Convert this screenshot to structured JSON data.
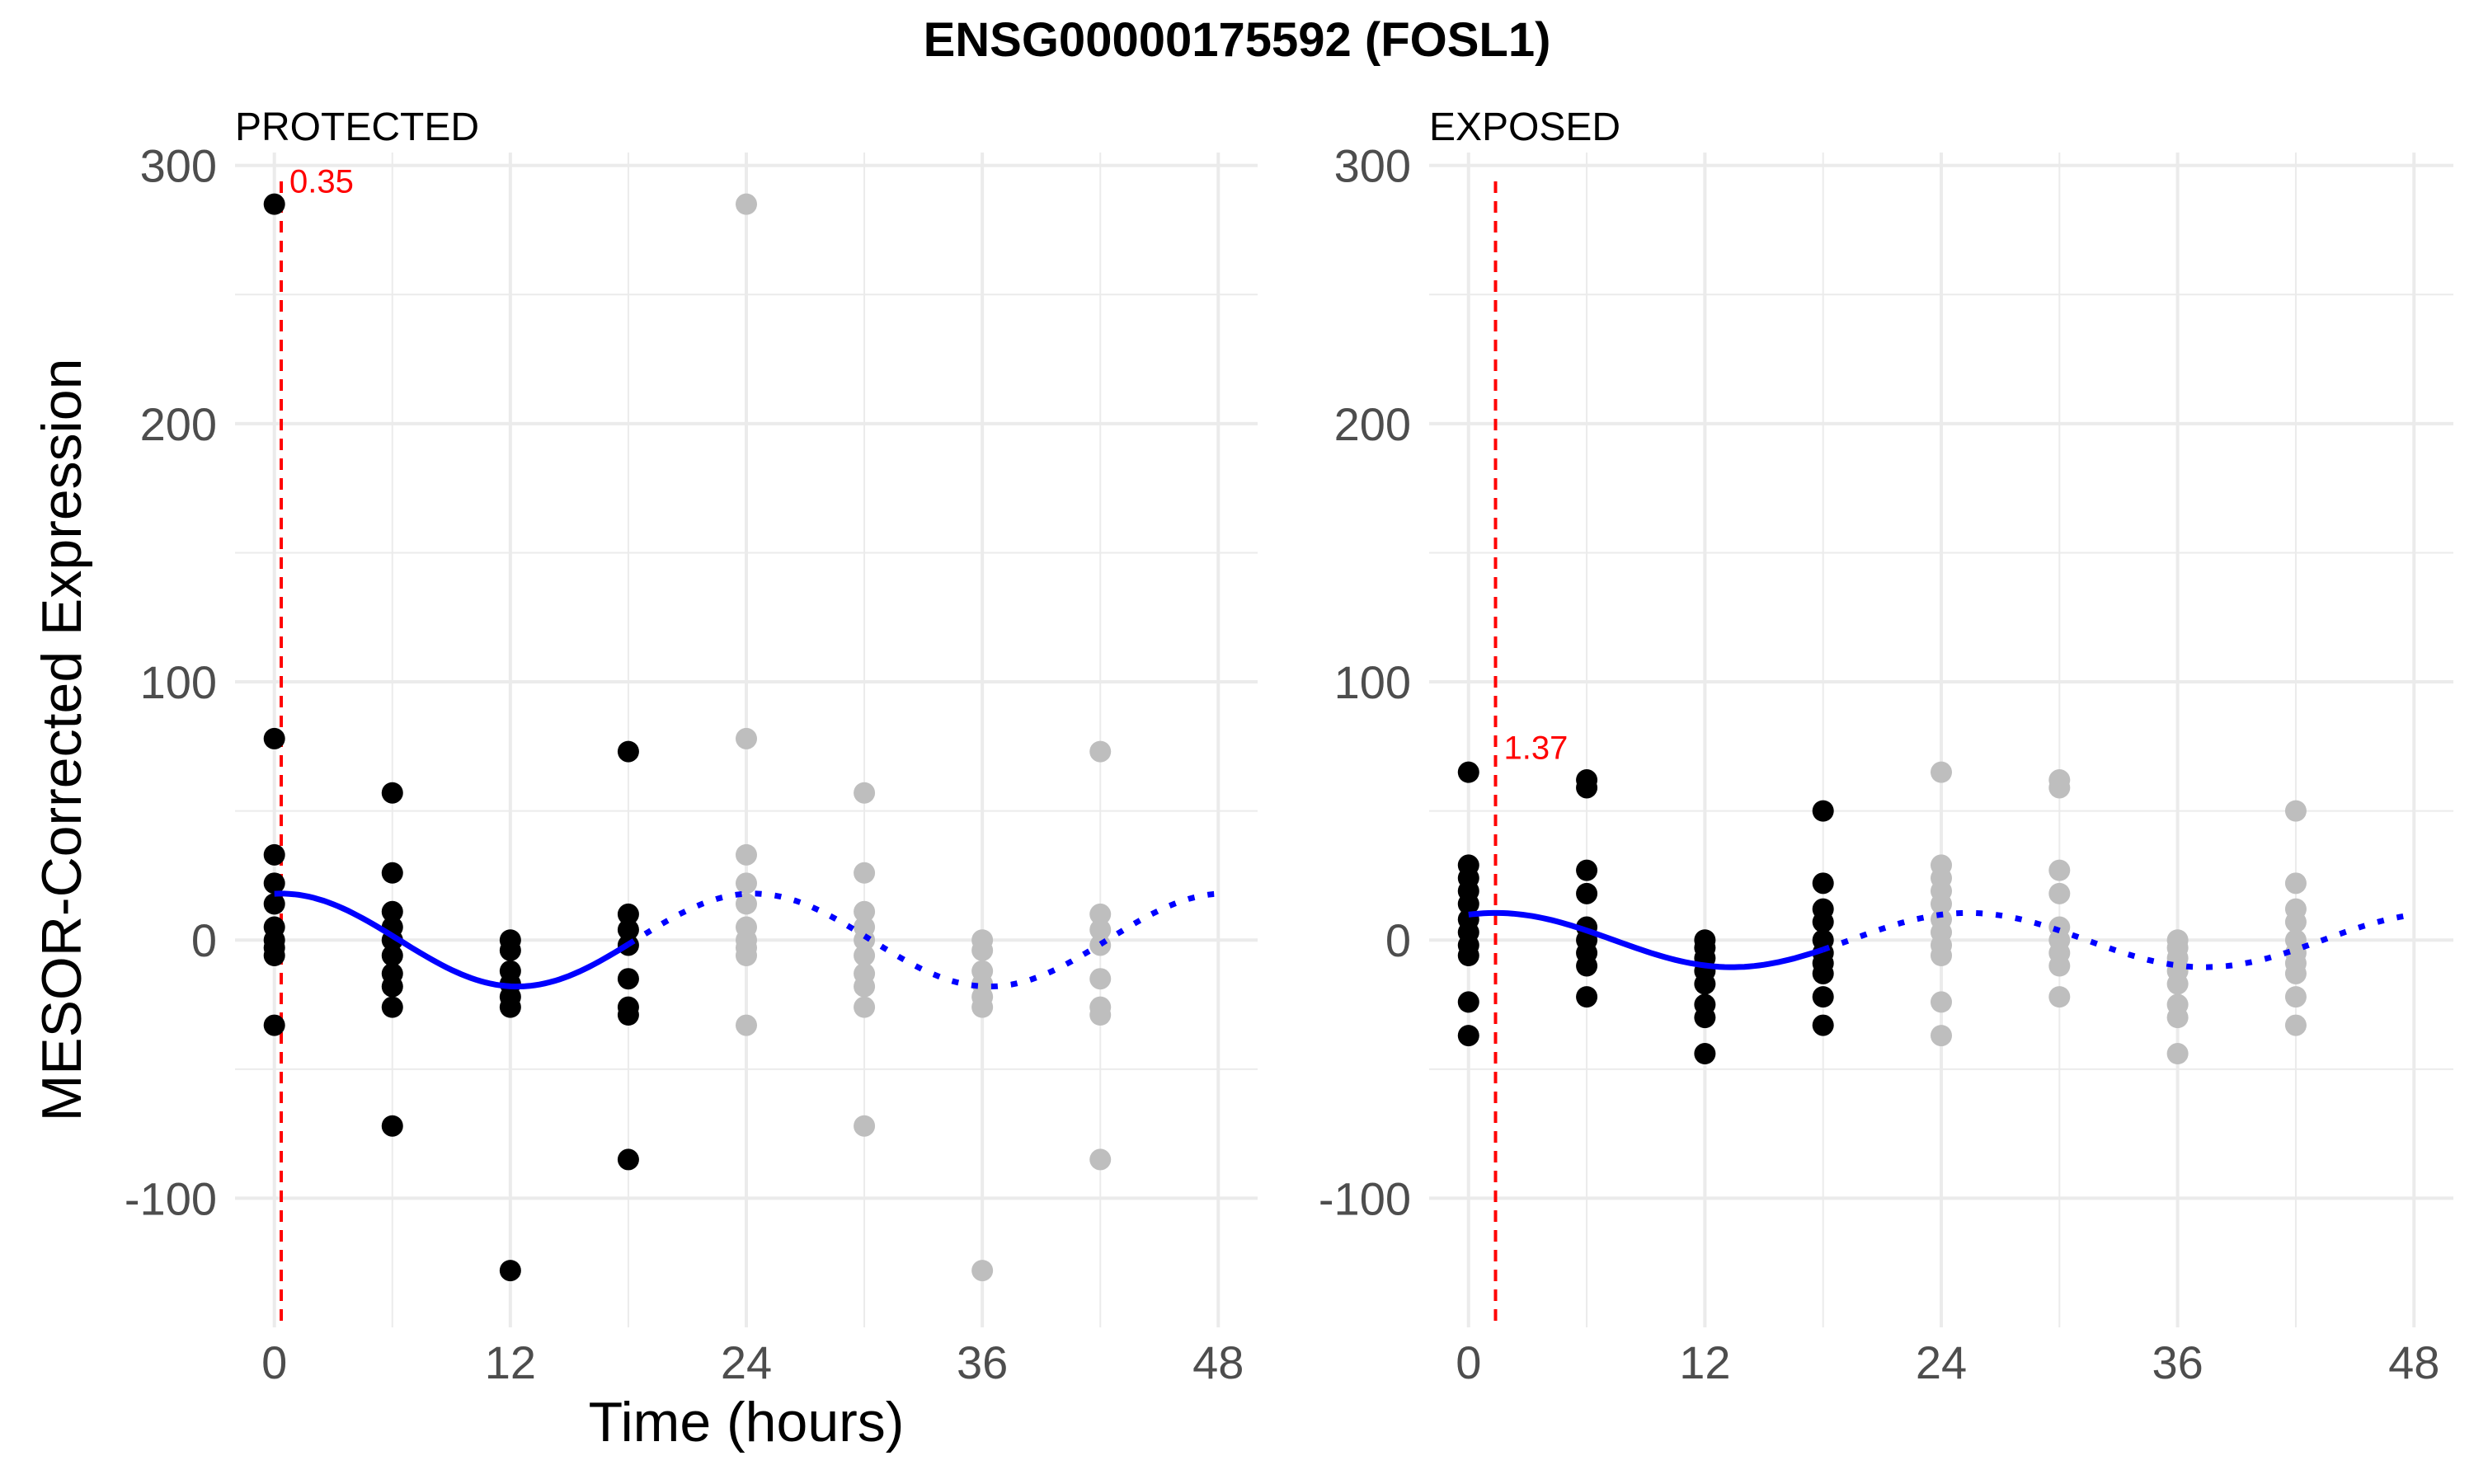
{
  "chart_data": {
    "type": "scatter",
    "title": "ENSG00000175592 (FOSL1)",
    "xlabel": "Time (hours)",
    "ylabel": "MESOR-Corrected Expression",
    "xlim": [
      -2,
      50
    ],
    "ylim": [
      -150,
      305
    ],
    "x_ticks": [
      0,
      12,
      24,
      36,
      48
    ],
    "y_ticks": [
      -100,
      0,
      100,
      200,
      300
    ],
    "grid": true,
    "colors": {
      "observed": "#000000",
      "replicated": "#bebebe",
      "fit": "#0000ff",
      "acrophase": "#ff0000",
      "grid": "#ebebeb"
    },
    "panels": [
      {
        "strip_label": "PROTECTED",
        "acrophase": 0.35,
        "acrophase_label": "0.35",
        "fit": {
          "mesor": 0,
          "amplitude": 18,
          "period": 24,
          "acrophase": 0.35,
          "solid_range": [
            0,
            18
          ],
          "dotted_range": [
            18,
            48
          ]
        },
        "points": [
          {
            "x": 0,
            "y": 285
          },
          {
            "x": 0,
            "y": 78
          },
          {
            "x": 0,
            "y": 33
          },
          {
            "x": 0,
            "y": 22
          },
          {
            "x": 0,
            "y": 14
          },
          {
            "x": 0,
            "y": 5
          },
          {
            "x": 0,
            "y": 0
          },
          {
            "x": 0,
            "y": -3
          },
          {
            "x": 0,
            "y": -6
          },
          {
            "x": 0,
            "y": -33
          },
          {
            "x": 6,
            "y": 57
          },
          {
            "x": 6,
            "y": 26
          },
          {
            "x": 6,
            "y": 11
          },
          {
            "x": 6,
            "y": 5
          },
          {
            "x": 6,
            "y": 0
          },
          {
            "x": 6,
            "y": -6
          },
          {
            "x": 6,
            "y": -13
          },
          {
            "x": 6,
            "y": -18
          },
          {
            "x": 6,
            "y": -26
          },
          {
            "x": 6,
            "y": -72
          },
          {
            "x": 12,
            "y": 0
          },
          {
            "x": 12,
            "y": -4
          },
          {
            "x": 12,
            "y": -12
          },
          {
            "x": 12,
            "y": -17
          },
          {
            "x": 12,
            "y": -22
          },
          {
            "x": 12,
            "y": -26
          },
          {
            "x": 12,
            "y": -128
          },
          {
            "x": 18,
            "y": 73
          },
          {
            "x": 18,
            "y": 10
          },
          {
            "x": 18,
            "y": 4
          },
          {
            "x": 18,
            "y": -2
          },
          {
            "x": 18,
            "y": -15
          },
          {
            "x": 18,
            "y": -26
          },
          {
            "x": 18,
            "y": -29
          },
          {
            "x": 18,
            "y": -85
          }
        ],
        "replicated_points": [
          {
            "x": 24,
            "y": 285
          },
          {
            "x": 24,
            "y": 78
          },
          {
            "x": 24,
            "y": 33
          },
          {
            "x": 24,
            "y": 22
          },
          {
            "x": 24,
            "y": 14
          },
          {
            "x": 24,
            "y": 5
          },
          {
            "x": 24,
            "y": 0
          },
          {
            "x": 24,
            "y": -3
          },
          {
            "x": 24,
            "y": -6
          },
          {
            "x": 24,
            "y": -33
          },
          {
            "x": 30,
            "y": 57
          },
          {
            "x": 30,
            "y": 26
          },
          {
            "x": 30,
            "y": 11
          },
          {
            "x": 30,
            "y": 5
          },
          {
            "x": 30,
            "y": 0
          },
          {
            "x": 30,
            "y": -6
          },
          {
            "x": 30,
            "y": -13
          },
          {
            "x": 30,
            "y": -18
          },
          {
            "x": 30,
            "y": -26
          },
          {
            "x": 30,
            "y": -72
          },
          {
            "x": 36,
            "y": 0
          },
          {
            "x": 36,
            "y": -4
          },
          {
            "x": 36,
            "y": -12
          },
          {
            "x": 36,
            "y": -17
          },
          {
            "x": 36,
            "y": -22
          },
          {
            "x": 36,
            "y": -26
          },
          {
            "x": 36,
            "y": -128
          },
          {
            "x": 42,
            "y": 73
          },
          {
            "x": 42,
            "y": 10
          },
          {
            "x": 42,
            "y": 4
          },
          {
            "x": 42,
            "y": -2
          },
          {
            "x": 42,
            "y": -15
          },
          {
            "x": 42,
            "y": -26
          },
          {
            "x": 42,
            "y": -29
          },
          {
            "x": 42,
            "y": -85
          }
        ]
      },
      {
        "strip_label": "EXPOSED",
        "acrophase": 1.37,
        "acrophase_label": "1.37",
        "fit": {
          "mesor": 0,
          "amplitude": 10.5,
          "period": 24,
          "acrophase": 1.37,
          "solid_range": [
            0,
            18
          ],
          "dotted_range": [
            18,
            48
          ]
        },
        "points": [
          {
            "x": 0,
            "y": 65
          },
          {
            "x": 0,
            "y": 29
          },
          {
            "x": 0,
            "y": 24
          },
          {
            "x": 0,
            "y": 19
          },
          {
            "x": 0,
            "y": 14
          },
          {
            "x": 0,
            "y": 8
          },
          {
            "x": 0,
            "y": 3
          },
          {
            "x": 0,
            "y": -2
          },
          {
            "x": 0,
            "y": -6
          },
          {
            "x": 0,
            "y": -24
          },
          {
            "x": 0,
            "y": -37
          },
          {
            "x": 6,
            "y": 62
          },
          {
            "x": 6,
            "y": 59
          },
          {
            "x": 6,
            "y": 27
          },
          {
            "x": 6,
            "y": 18
          },
          {
            "x": 6,
            "y": 5
          },
          {
            "x": 6,
            "y": 0
          },
          {
            "x": 6,
            "y": -5
          },
          {
            "x": 6,
            "y": -10
          },
          {
            "x": 6,
            "y": -22
          },
          {
            "x": 12,
            "y": 0
          },
          {
            "x": 12,
            "y": -3
          },
          {
            "x": 12,
            "y": -7
          },
          {
            "x": 12,
            "y": -12
          },
          {
            "x": 12,
            "y": -17
          },
          {
            "x": 12,
            "y": -25
          },
          {
            "x": 12,
            "y": -30
          },
          {
            "x": 12,
            "y": -44
          },
          {
            "x": 18,
            "y": 50
          },
          {
            "x": 18,
            "y": 22
          },
          {
            "x": 18,
            "y": 12
          },
          {
            "x": 18,
            "y": 7
          },
          {
            "x": 18,
            "y": 0
          },
          {
            "x": 18,
            "y": -5
          },
          {
            "x": 18,
            "y": -9
          },
          {
            "x": 18,
            "y": -13
          },
          {
            "x": 18,
            "y": -22
          },
          {
            "x": 18,
            "y": -33
          }
        ],
        "replicated_points": [
          {
            "x": 24,
            "y": 65
          },
          {
            "x": 24,
            "y": 29
          },
          {
            "x": 24,
            "y": 24
          },
          {
            "x": 24,
            "y": 19
          },
          {
            "x": 24,
            "y": 14
          },
          {
            "x": 24,
            "y": 8
          },
          {
            "x": 24,
            "y": 3
          },
          {
            "x": 24,
            "y": -2
          },
          {
            "x": 24,
            "y": -6
          },
          {
            "x": 24,
            "y": -24
          },
          {
            "x": 24,
            "y": -37
          },
          {
            "x": 30,
            "y": 62
          },
          {
            "x": 30,
            "y": 59
          },
          {
            "x": 30,
            "y": 27
          },
          {
            "x": 30,
            "y": 18
          },
          {
            "x": 30,
            "y": 5
          },
          {
            "x": 30,
            "y": 0
          },
          {
            "x": 30,
            "y": -5
          },
          {
            "x": 30,
            "y": -10
          },
          {
            "x": 30,
            "y": -22
          },
          {
            "x": 36,
            "y": 0
          },
          {
            "x": 36,
            "y": -3
          },
          {
            "x": 36,
            "y": -7
          },
          {
            "x": 36,
            "y": -12
          },
          {
            "x": 36,
            "y": -17
          },
          {
            "x": 36,
            "y": -25
          },
          {
            "x": 36,
            "y": -30
          },
          {
            "x": 36,
            "y": -44
          },
          {
            "x": 42,
            "y": 50
          },
          {
            "x": 42,
            "y": 22
          },
          {
            "x": 42,
            "y": 12
          },
          {
            "x": 42,
            "y": 7
          },
          {
            "x": 42,
            "y": 0
          },
          {
            "x": 42,
            "y": -5
          },
          {
            "x": 42,
            "y": -9
          },
          {
            "x": 42,
            "y": -13
          },
          {
            "x": 42,
            "y": -22
          },
          {
            "x": 42,
            "y": -33
          }
        ]
      }
    ]
  }
}
